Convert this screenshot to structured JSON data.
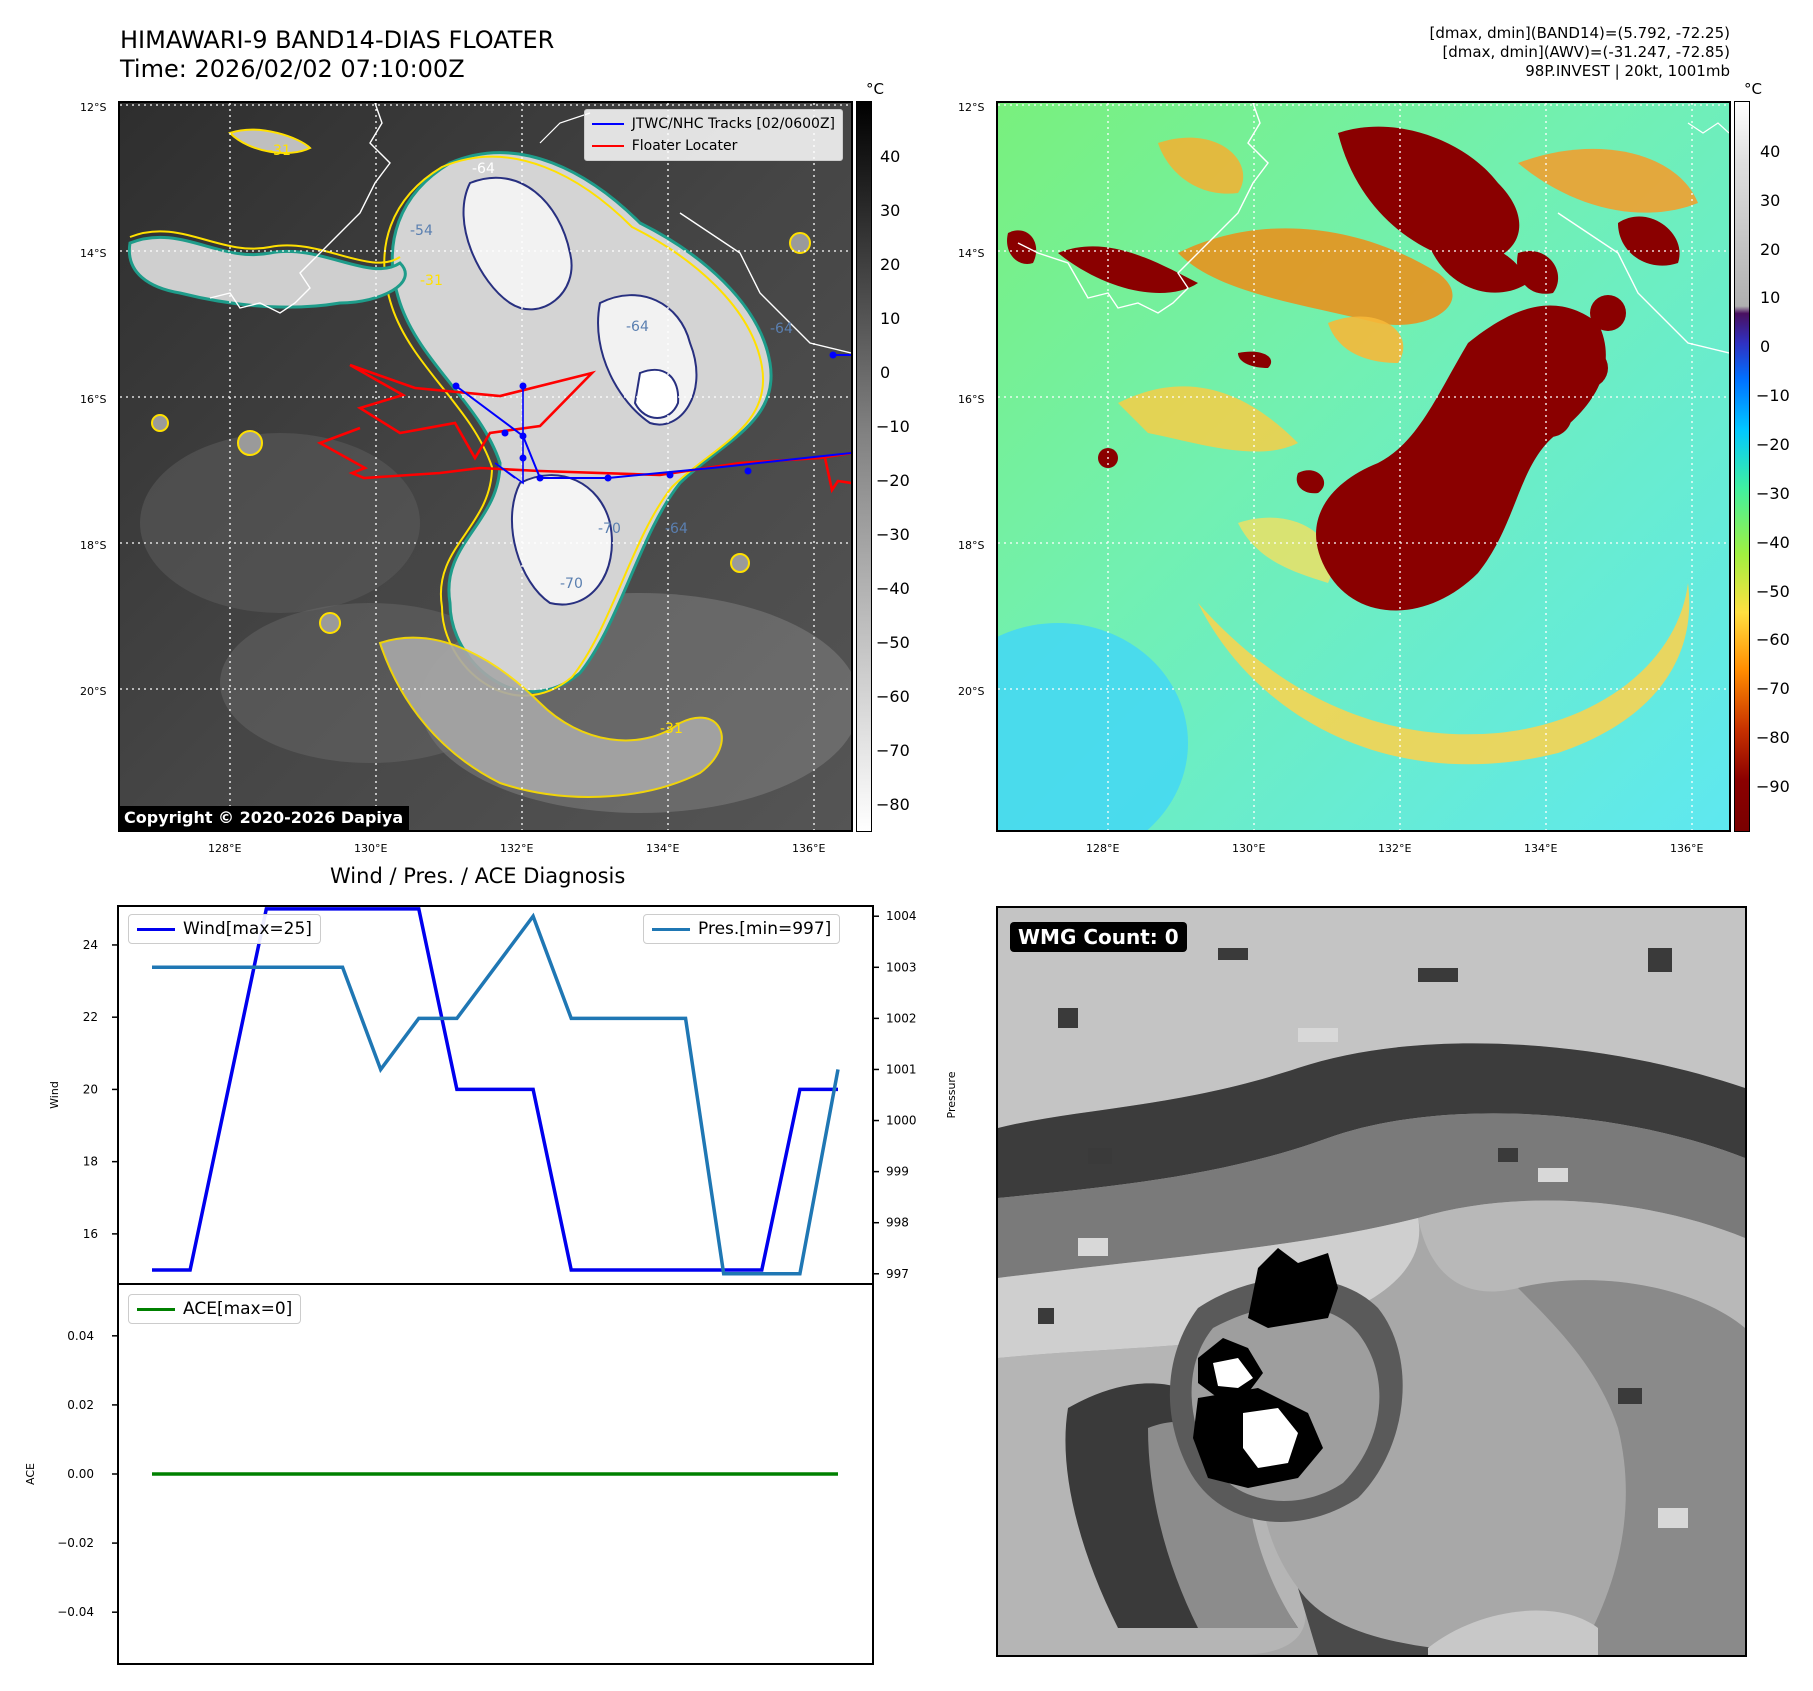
{
  "header": {
    "title_line1": "HIMAWARI-9 BAND14-DIAS FLOATER",
    "title_line2": "Time: 2026/02/02 07:10:00Z",
    "stats_line1": "[dmax, dmin](BAND14)=(5.792, -72.25)",
    "stats_line2": "[dmax, dmin](AWV)=(-31.247, -72.85)",
    "stats_line3": "98P.INVEST | 20kt, 1001mb"
  },
  "colors": {
    "wind": "#0000ee",
    "pressure": "#1f77b4",
    "ace": "#008000",
    "track": "#0000ff",
    "floater": "#ff0000",
    "contour_yellow": "#ffe000",
    "contour_teal": "#1e9c8a",
    "contour_navy": "#283080"
  },
  "ir_panel": {
    "unit": "°C",
    "lat_labels": [
      "12°S",
      "14°S",
      "16°S",
      "18°S",
      "20°S"
    ],
    "lon_labels": [
      "128°E",
      "130°E",
      "132°E",
      "134°E",
      "136°E"
    ],
    "colorbar_ticks": [
      "40",
      "30",
      "20",
      "10",
      "0",
      "−10",
      "−20",
      "−30",
      "−40",
      "−50",
      "−60",
      "−70",
      "−80"
    ],
    "legend_tracks": "JTWC/NHC Tracks [02/0600Z]",
    "legend_floater": "Floater Locater",
    "copyright": "Copyright © 2020-2026 Dapiya",
    "contour_labels": [
      "-31",
      "-64",
      "-54",
      "-31",
      "-64",
      "-64",
      "-70",
      "-70",
      "-64",
      "-31"
    ]
  },
  "awv_panel": {
    "unit": "°C",
    "lat_labels": [
      "12°S",
      "14°S",
      "16°S",
      "18°S",
      "20°S"
    ],
    "lon_labels": [
      "128°E",
      "130°E",
      "132°E",
      "134°E",
      "136°E"
    ],
    "colorbar_ticks": [
      "40",
      "30",
      "20",
      "10",
      "0",
      "−10",
      "−20",
      "−30",
      "−40",
      "−50",
      "−60",
      "−70",
      "−80",
      "−90"
    ]
  },
  "diagnosis": {
    "subtitle": "Wind / Pres. / ACE Diagnosis",
    "wind_legend": "Wind[max=25]",
    "pres_legend": "Pres.[min=997]",
    "ace_legend": "ACE[max=0]",
    "wind_ylabel": "Wind",
    "pres_ylabel": "Pressure",
    "ace_ylabel": "ACE",
    "wind_ticks": [
      "24",
      "22",
      "20",
      "18",
      "16"
    ],
    "pres_ticks": [
      "1004",
      "1003",
      "1002",
      "1001",
      "1000",
      "999",
      "998",
      "997"
    ],
    "ace_ticks": [
      "0.04",
      "0.02",
      "0.00",
      "−0.02",
      "−0.04"
    ]
  },
  "wmg_panel": {
    "label": "WMG Count: 0"
  },
  "chart_data": [
    {
      "type": "line",
      "title": "Wind / Pres. / ACE Diagnosis",
      "x": [
        0,
        1,
        2,
        3,
        4,
        5,
        6,
        7,
        8,
        9,
        10,
        11,
        12,
        13,
        14,
        15,
        16,
        17,
        18
      ],
      "series": [
        {
          "name": "Wind[max=25]",
          "axis": "left",
          "values": [
            15,
            15,
            20,
            25,
            25,
            25,
            25,
            25,
            20,
            20,
            20,
            15,
            15,
            15,
            15,
            15,
            15,
            20,
            20
          ]
        },
        {
          "name": "Pres.[min=997]",
          "axis": "right",
          "values": [
            1003,
            1003,
            1003,
            1003,
            1003,
            1003,
            1001,
            1002,
            1002,
            1003,
            1004,
            1002,
            1002,
            1002,
            1002,
            997,
            997,
            997,
            1001
          ]
        }
      ],
      "ylabel": "Wind",
      "ylim": [
        15,
        25.3
      ],
      "y2label": "Pressure",
      "y2lim": [
        996.8,
        1004.2
      ]
    },
    {
      "type": "line",
      "x": [
        0,
        18
      ],
      "series": [
        {
          "name": "ACE[max=0]",
          "values": [
            0,
            0
          ]
        }
      ],
      "ylabel": "ACE",
      "ylim": [
        -0.055,
        0.055
      ]
    }
  ]
}
